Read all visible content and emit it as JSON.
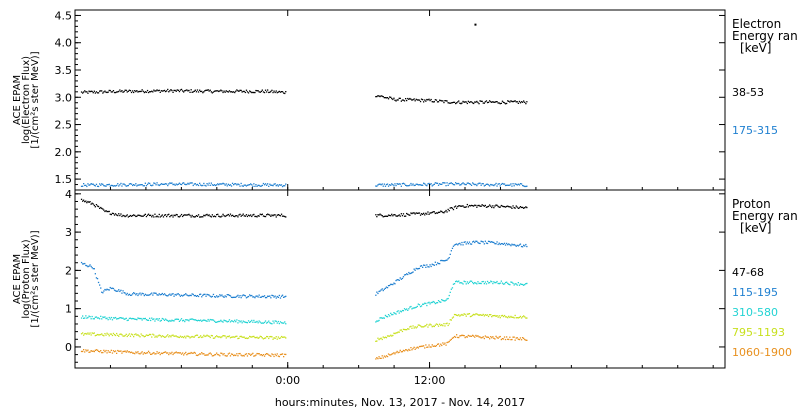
{
  "xaxis": {
    "label": "hours:minutes, Nov. 13, 2017 - Nov. 14, 2017",
    "range_hours": [
      -18,
      37
    ],
    "ticks": [
      {
        "h": 0,
        "label": "0:00"
      },
      {
        "h": 12,
        "label": "12:00"
      }
    ]
  },
  "chart_data": [
    {
      "type": "scatter",
      "panel": "electron",
      "ylabel": [
        "ACE EPAM",
        "log(Electron Flux)",
        "[1/(cm²s ster MeV)]"
      ],
      "ylim": [
        1.3,
        4.6
      ],
      "yticks": [
        1.5,
        2.0,
        2.5,
        3.0,
        3.5,
        4.0,
        4.5
      ],
      "ytick_labels": [
        "1.5",
        "2.0",
        "2.5",
        "3.0",
        "3.5",
        "4.0",
        "4.5"
      ],
      "legend_title": [
        "Electron",
        "Energy ran",
        "[keV]"
      ],
      "gaps_hours": [
        [
          -0.2,
          7.4
        ]
      ],
      "series": [
        {
          "name": "38-53",
          "color": "#000000",
          "x": [
            -17.5,
            -14,
            -10,
            -6,
            -2,
            -0.2,
            7.4,
            9,
            12,
            14,
            17,
            20.2
          ],
          "values": [
            3.1,
            3.12,
            3.13,
            3.12,
            3.12,
            3.1,
            3.05,
            2.97,
            2.95,
            2.92,
            2.92,
            2.92
          ]
        },
        {
          "name": "175-315",
          "color": "#1e7fd0",
          "x": [
            -17.5,
            -10,
            -0.2,
            7.4,
            14,
            20.2
          ],
          "values": [
            1.4,
            1.42,
            1.4,
            1.4,
            1.42,
            1.4
          ]
        }
      ],
      "outliers": [
        {
          "x": 15.8,
          "y": 4.35,
          "color": "#000000"
        }
      ]
    },
    {
      "type": "scatter",
      "panel": "proton",
      "ylabel": [
        "ACE EPAM",
        "log(Proton Flux)",
        "[1/(cm²s ster MeV)]"
      ],
      "ylim": [
        -0.55,
        4.1
      ],
      "yticks": [
        0,
        1,
        2,
        3,
        4
      ],
      "ytick_labels": [
        "0",
        "1",
        "2",
        "3",
        "4"
      ],
      "legend_title": [
        "Proton",
        "Energy ran",
        "[keV]"
      ],
      "gaps_hours": [
        [
          -0.2,
          7.4
        ]
      ],
      "series": [
        {
          "name": "47-68",
          "color": "#000000",
          "x": [
            -17.5,
            -16.5,
            -15.5,
            -14,
            -10,
            -6,
            -0.2,
            7.4,
            10,
            13,
            14.5,
            17,
            20.2
          ],
          "values": [
            3.85,
            3.75,
            3.55,
            3.45,
            3.45,
            3.45,
            3.45,
            3.45,
            3.47,
            3.53,
            3.7,
            3.7,
            3.65
          ]
        },
        {
          "name": "115-195",
          "color": "#1e7fd0",
          "x": [
            -17.5,
            -16.5,
            -15.8,
            -15,
            -13.5,
            -10,
            -6,
            -0.2,
            7.4,
            8.5,
            10,
            11,
            12,
            13.5,
            14,
            16,
            18,
            20.2
          ],
          "values": [
            2.2,
            2.1,
            1.45,
            1.55,
            1.4,
            1.38,
            1.35,
            1.33,
            1.4,
            1.6,
            1.9,
            2.1,
            2.15,
            2.3,
            2.7,
            2.75,
            2.72,
            2.65
          ]
        },
        {
          "name": "310-580",
          "color": "#22d3d3",
          "x": [
            -17.5,
            -14,
            -10,
            -6,
            -0.2,
            7.4,
            8.5,
            10,
            11,
            12,
            13.5,
            14,
            16,
            18,
            20.2
          ],
          "values": [
            0.8,
            0.75,
            0.72,
            0.7,
            0.65,
            0.7,
            0.85,
            1.0,
            1.1,
            1.15,
            1.25,
            1.7,
            1.7,
            1.7,
            1.65
          ]
        },
        {
          "name": "795-1193",
          "color": "#c8e01e",
          "x": [
            -17.5,
            -14,
            -10,
            -6,
            -0.2,
            7.4,
            8.5,
            10,
            11,
            12,
            13.5,
            14,
            16,
            18,
            20.2
          ],
          "values": [
            0.35,
            0.33,
            0.3,
            0.28,
            0.25,
            0.2,
            0.3,
            0.5,
            0.55,
            0.58,
            0.6,
            0.85,
            0.85,
            0.82,
            0.8
          ]
        },
        {
          "name": "1060-1900",
          "color": "#e8901e",
          "x": [
            -17.5,
            -14,
            -10,
            -6,
            -0.2,
            7.4,
            8.5,
            10,
            11,
            12,
            13.5,
            14,
            16,
            18,
            20.2
          ],
          "values": [
            -0.08,
            -0.12,
            -0.15,
            -0.18,
            -0.2,
            -0.3,
            -0.2,
            -0.05,
            0.0,
            0.05,
            0.1,
            0.3,
            0.28,
            0.25,
            0.22
          ]
        }
      ]
    }
  ]
}
